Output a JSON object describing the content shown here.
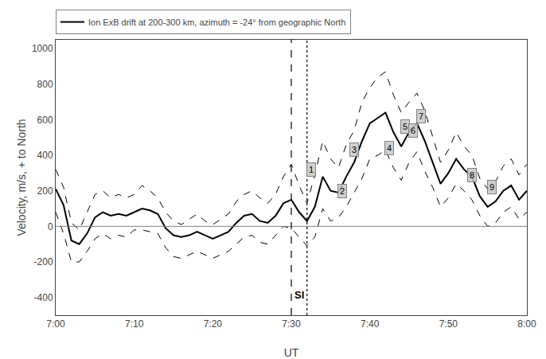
{
  "chart_data": {
    "type": "line",
    "xlabel": "UT",
    "ylabel": "Velocity, m/s, + to North",
    "x": [
      420,
      421,
      422,
      423,
      424,
      425,
      426,
      427,
      428,
      429,
      430,
      431,
      432,
      433,
      434,
      435,
      436,
      437,
      438,
      439,
      440,
      441,
      442,
      443,
      444,
      445,
      446,
      447,
      448,
      449,
      450,
      451,
      452,
      453,
      454,
      455,
      456,
      457,
      458,
      459,
      460,
      461,
      462,
      463,
      464,
      465,
      466,
      467,
      468,
      469,
      470,
      471,
      472,
      473,
      474,
      475,
      476,
      477,
      478,
      479,
      480
    ],
    "series": [
      {
        "color": "black",
        "line_style": "dashed",
        "values": [
          320,
          220,
          20,
          -20,
          80,
          180,
          200,
          160,
          180,
          160,
          180,
          230,
          200,
          160,
          80,
          30,
          10,
          40,
          70,
          30,
          10,
          40,
          70,
          140,
          180,
          200,
          160,
          130,
          180,
          280,
          350,
          230,
          130,
          290,
          480,
          380,
          330,
          460,
          540,
          700,
          780,
          840,
          870,
          740,
          640,
          700,
          750,
          650,
          500,
          360,
          430,
          530,
          450,
          400,
          270,
          210,
          250,
          340,
          380,
          290,
          350
        ]
      },
      {
        "color": "black",
        "line_style": "dashed",
        "values": [
          80,
          -40,
          -200,
          -200,
          -140,
          -70,
          -40,
          -70,
          -50,
          -60,
          -20,
          -20,
          -30,
          -40,
          -120,
          -170,
          -180,
          -160,
          -140,
          -160,
          -180,
          -160,
          -140,
          -100,
          -60,
          -50,
          -90,
          -100,
          -50,
          0,
          -10,
          -60,
          -110,
          -60,
          100,
          30,
          50,
          110,
          190,
          270,
          380,
          400,
          430,
          330,
          260,
          360,
          420,
          310,
          220,
          110,
          160,
          240,
          200,
          150,
          60,
          0,
          20,
          80,
          110,
          40,
          80
        ]
      },
      {
        "name": "Ion ExB drift at 200-300 km, azimuth = -24° from geographic North",
        "color": "black",
        "line_style": "solid",
        "values": [
          210,
          120,
          -80,
          -100,
          -40,
          50,
          80,
          60,
          70,
          60,
          80,
          100,
          90,
          70,
          -10,
          -50,
          -60,
          -50,
          -30,
          -50,
          -70,
          -50,
          -30,
          20,
          60,
          70,
          30,
          20,
          60,
          130,
          150,
          80,
          30,
          110,
          280,
          200,
          190,
          280,
          360,
          480,
          580,
          610,
          640,
          530,
          450,
          530,
          580,
          480,
          360,
          240,
          300,
          380,
          320,
          280,
          170,
          110,
          140,
          200,
          230,
          150,
          200
        ]
      }
    ],
    "xlim": [
      420,
      480
    ],
    "xticks": [
      {
        "value": 420,
        "label": "7:00"
      },
      {
        "value": 430,
        "label": "7:10"
      },
      {
        "value": 440,
        "label": "7:20"
      },
      {
        "value": 450,
        "label": "7:30"
      },
      {
        "value": 460,
        "label": "7:40"
      },
      {
        "value": 470,
        "label": "7:50"
      },
      {
        "value": 480,
        "label": "8:00"
      }
    ],
    "ylim": [
      -500,
      1050
    ],
    "yticks": [
      -400,
      -200,
      0,
      200,
      400,
      600,
      800,
      1000
    ],
    "hlines": [
      {
        "y": 0,
        "color": "gray",
        "line_style": "solid"
      }
    ],
    "vlines": [
      {
        "x": 450,
        "color": "black",
        "line_style": "dashed"
      },
      {
        "x": 452,
        "color": "black",
        "line_style": "dotted"
      }
    ],
    "annotations": [
      {
        "text": "SI",
        "x": 450.2,
        "y": -430
      }
    ],
    "numbered_points": [
      {
        "label": "1",
        "x": 452.5,
        "y": 320
      },
      {
        "label": "2",
        "x": 456.5,
        "y": 200
      },
      {
        "label": "3",
        "x": 458.0,
        "y": 430
      },
      {
        "label": "4",
        "x": 462.5,
        "y": 440
      },
      {
        "label": "5",
        "x": 464.5,
        "y": 560
      },
      {
        "label": "6",
        "x": 465.5,
        "y": 540
      },
      {
        "label": "7",
        "x": 466.5,
        "y": 620
      },
      {
        "label": "8",
        "x": 473.0,
        "y": 290
      },
      {
        "label": "9",
        "x": 475.5,
        "y": 220
      }
    ],
    "legend": "upper left",
    "grid": false
  }
}
